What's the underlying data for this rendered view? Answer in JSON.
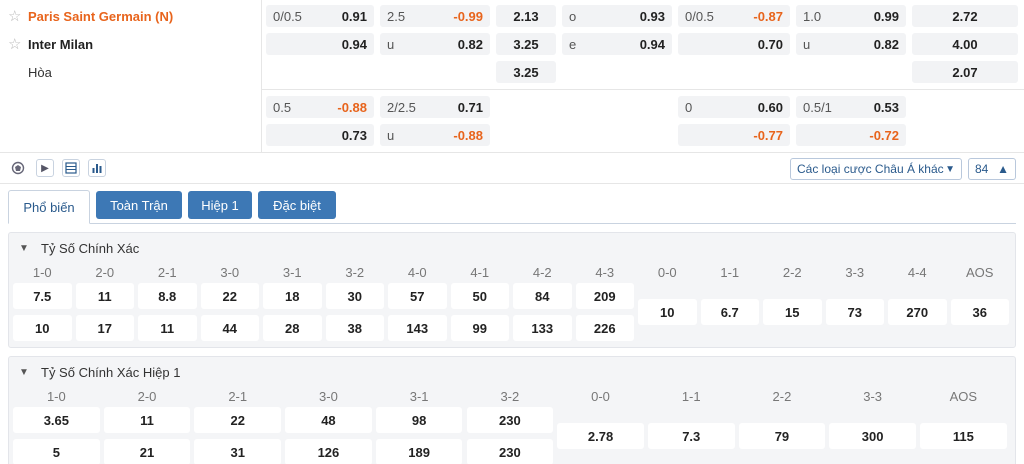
{
  "match": {
    "home": "Paris Saint Germain (N)",
    "away": "Inter Milan",
    "draw": "Hòa"
  },
  "odds": {
    "g1": {
      "hdp_line": "0/0.5",
      "hdp_home": "0.91",
      "hdp_away": "0.94",
      "ou_line": "2.5",
      "ou_over": "-0.99",
      "ou_under_lbl": "u",
      "ou_under": "0.82",
      "x12_home": "2.13",
      "x12_away": "3.25",
      "x12_draw": "3.25",
      "oe_o_lbl": "o",
      "oe_o": "0.93",
      "oe_e_lbl": "e",
      "oe_e": "0.94",
      "h1_hdp_line": "0/0.5",
      "h1_hdp_home": "-0.87",
      "h1_hdp_away": "0.70",
      "h1_ou_line": "1.0",
      "h1_ou_over": "0.99",
      "h1_ou_under_lbl": "u",
      "h1_ou_under": "0.82",
      "h1_x12_home": "2.72",
      "h1_x12_away": "4.00",
      "h1_x12_draw": "2.07"
    },
    "g2": {
      "hdp_line": "0.5",
      "hdp_home": "-0.88",
      "hdp_away": "0.73",
      "ou_line": "2/2.5",
      "ou_over": "0.71",
      "ou_under_lbl": "u",
      "ou_under": "-0.88",
      "h1_hdp_line": "0",
      "h1_hdp_home": "0.60",
      "h1_hdp_away": "-0.77",
      "h1_ou_line": "0.5/1",
      "h1_ou_over": "0.53",
      "h1_ou_under": "-0.72"
    }
  },
  "toolbar": {
    "dropdown_label": "Các loại cược Châu Á khác",
    "count": "84"
  },
  "tabs": [
    "Phổ biến",
    "Toàn Trận",
    "Hiệp 1",
    "Đặc biệt"
  ],
  "correct_score": {
    "title": "Tỷ Số Chính Xác",
    "headers": [
      "1-0",
      "2-0",
      "2-1",
      "3-0",
      "3-1",
      "3-2",
      "4-0",
      "4-1",
      "4-2",
      "4-3",
      "0-0",
      "1-1",
      "2-2",
      "3-3",
      "4-4",
      "AOS"
    ],
    "home": [
      "7.5",
      "11",
      "8.8",
      "22",
      "18",
      "30",
      "57",
      "50",
      "84",
      "209"
    ],
    "away": [
      "10",
      "17",
      "11",
      "44",
      "28",
      "38",
      "143",
      "99",
      "133",
      "226"
    ],
    "level": [
      "10",
      "6.7",
      "15",
      "73",
      "270",
      "36"
    ]
  },
  "correct_score_h1": {
    "title": "Tỷ Số Chính Xác Hiệp 1",
    "headers": [
      "1-0",
      "2-0",
      "2-1",
      "3-0",
      "3-1",
      "3-2",
      "0-0",
      "1-1",
      "2-2",
      "3-3",
      "AOS"
    ],
    "home": [
      "3.65",
      "11",
      "22",
      "48",
      "98",
      "230"
    ],
    "away": [
      "5",
      "21",
      "31",
      "126",
      "189",
      "230"
    ],
    "level": [
      "2.78",
      "7.3",
      "79",
      "300",
      "115"
    ]
  }
}
